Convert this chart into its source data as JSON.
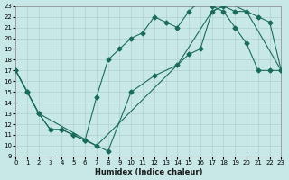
{
  "xlabel": "Humidex (Indice chaleur)",
  "bg_color": "#c8e8e8",
  "line_color": "#1a6b5a",
  "xlim": [
    0,
    23
  ],
  "ylim": [
    9,
    23
  ],
  "xticks": [
    0,
    1,
    2,
    3,
    4,
    5,
    6,
    7,
    8,
    9,
    10,
    11,
    12,
    13,
    14,
    15,
    16,
    17,
    18,
    19,
    20,
    21,
    22,
    23
  ],
  "yticks": [
    9,
    10,
    11,
    12,
    13,
    14,
    15,
    16,
    17,
    18,
    19,
    20,
    21,
    22,
    23
  ],
  "line1_x": [
    0,
    1,
    2,
    3,
    4,
    5,
    6,
    7,
    8,
    9,
    10,
    11,
    12,
    13,
    14,
    15,
    16,
    17,
    18,
    19,
    20,
    21,
    22,
    23
  ],
  "line1_y": [
    17.0,
    15.0,
    13.0,
    11.5,
    11.5,
    11.0,
    10.5,
    14.5,
    18.0,
    19.0,
    20.0,
    20.5,
    22.0,
    21.5,
    21.0,
    22.5,
    23.5,
    23.0,
    22.5,
    21.0,
    19.5,
    17.0,
    17.0,
    17.0
  ],
  "line2_x": [
    0,
    1,
    2,
    3,
    4,
    5,
    6,
    7,
    8,
    10,
    12,
    14,
    15,
    16,
    17,
    18,
    19,
    20,
    21,
    22,
    23
  ],
  "line2_y": [
    17.0,
    15.0,
    13.0,
    11.5,
    11.5,
    11.0,
    10.5,
    10.0,
    9.5,
    15.0,
    16.5,
    17.5,
    18.5,
    19.0,
    22.5,
    23.0,
    22.5,
    22.5,
    22.0,
    21.5,
    17.0
  ],
  "line3_x": [
    0,
    2,
    7,
    14,
    17,
    18,
    19,
    20,
    23
  ],
  "line3_y": [
    17.0,
    13.0,
    10.0,
    17.5,
    22.5,
    23.0,
    23.0,
    22.5,
    17.0
  ]
}
